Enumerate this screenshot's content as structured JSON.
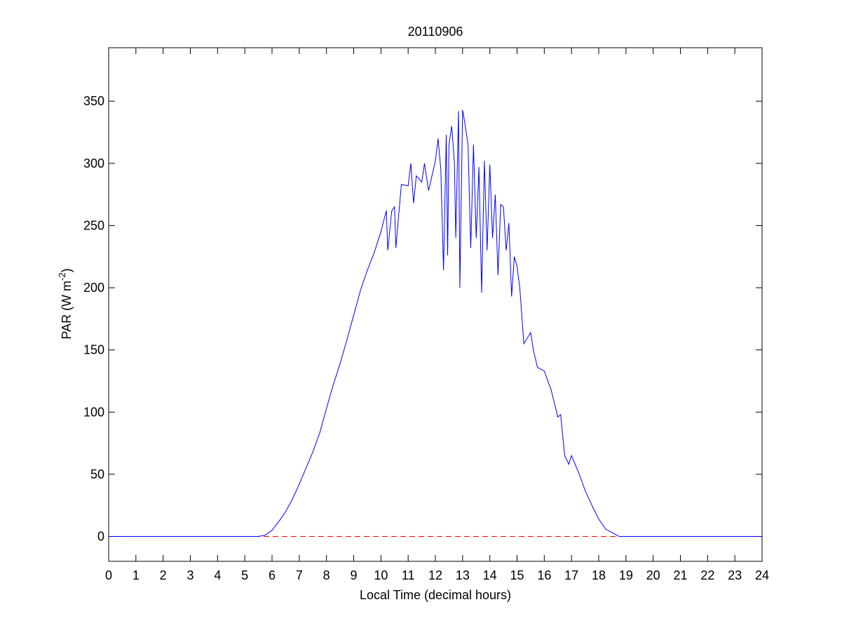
{
  "chart_data": {
    "type": "line",
    "title": "20110906",
    "x_label": "Local Time (decimal hours)",
    "y_label": {
      "text": "PAR (W m",
      "superscript": "-2",
      "suffix": ")"
    },
    "x": [
      0,
      5.5,
      5.75,
      6,
      6.25,
      6.5,
      6.75,
      7,
      7.25,
      7.5,
      7.75,
      8,
      8.25,
      8.5,
      8.75,
      9,
      9.25,
      9.5,
      9.75,
      10,
      10.2,
      10.25,
      10.4,
      10.5,
      10.55,
      10.75,
      11,
      11.1,
      11.2,
      11.3,
      11.5,
      11.6,
      11.75,
      12,
      12.1,
      12.2,
      12.3,
      12.4,
      12.45,
      12.5,
      12.6,
      12.7,
      12.75,
      12.85,
      12.9,
      13,
      13.1,
      13.2,
      13.3,
      13.4,
      13.5,
      13.6,
      13.7,
      13.8,
      13.9,
      14,
      14.1,
      14.2,
      14.3,
      14.4,
      14.5,
      14.6,
      14.7,
      14.8,
      14.9,
      15,
      15.1,
      15.25,
      15.5,
      15.6,
      15.75,
      16,
      16.25,
      16.5,
      16.6,
      16.75,
      16.9,
      17,
      17.25,
      17.5,
      17.75,
      18,
      18.25,
      18.5,
      18.75,
      24
    ],
    "series": [
      {
        "color": "#0000ff",
        "values": [
          0,
          0,
          1,
          5,
          12,
          20,
          30,
          42,
          55,
          68,
          83,
          103,
          122,
          139,
          158,
          178,
          198,
          214,
          228,
          245,
          262,
          230,
          262,
          265,
          232,
          283,
          282,
          300,
          268,
          290,
          285,
          300,
          278,
          302,
          320,
          295,
          214,
          323,
          226,
          315,
          330,
          300,
          240,
          342,
          200,
          343,
          330,
          315,
          232,
          315,
          240,
          297,
          196,
          302,
          230,
          299,
          240,
          275,
          210,
          267,
          265,
          230,
          252,
          193,
          225,
          217,
          200,
          155,
          164,
          150,
          136,
          133,
          118,
          96,
          98,
          65,
          58,
          65,
          52,
          37,
          25,
          14,
          6,
          3,
          0,
          0
        ]
      }
    ],
    "reference_line": {
      "y": 0,
      "color": "#ff0000",
      "dashed": true
    },
    "xlim": [
      0,
      24
    ],
    "xticks": [
      0,
      1,
      2,
      3,
      4,
      5,
      6,
      7,
      8,
      9,
      10,
      11,
      12,
      13,
      14,
      15,
      16,
      17,
      18,
      19,
      20,
      21,
      22,
      23,
      24
    ],
    "ylim": [
      -20,
      393
    ],
    "yticks": [
      0,
      50,
      100,
      150,
      200,
      250,
      300,
      350
    ]
  }
}
